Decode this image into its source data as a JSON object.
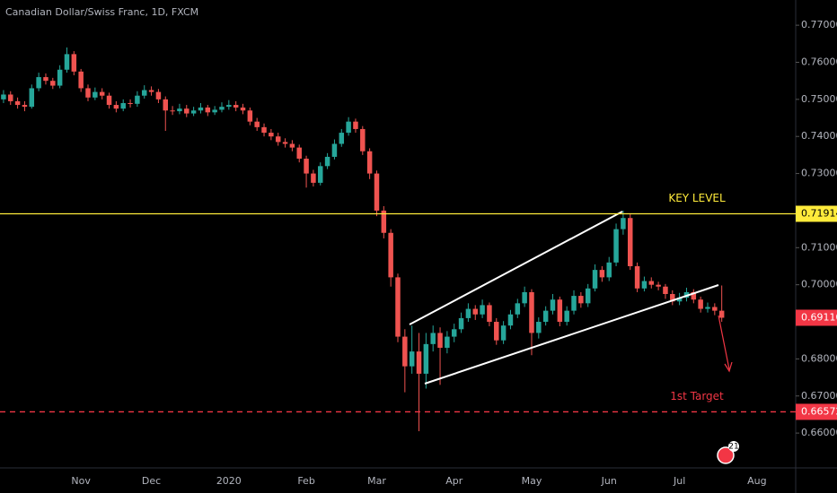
{
  "chart_data": {
    "type": "candlestick",
    "title": "Canadian Dollar/Swiss Franc, 1D, FXCM",
    "up_color": "#26a69a",
    "down_color": "#ef5350",
    "grid": false,
    "categories": [
      null,
      null,
      null,
      null,
      null,
      null,
      null,
      null,
      null,
      null,
      null,
      "Nov",
      null,
      null,
      null,
      null,
      null,
      null,
      null,
      null,
      null,
      "Dec",
      null,
      null,
      null,
      null,
      null,
      null,
      null,
      null,
      null,
      null,
      "2020",
      null,
      null,
      null,
      null,
      null,
      null,
      null,
      null,
      null,
      null,
      "Feb",
      null,
      null,
      null,
      null,
      null,
      null,
      null,
      null,
      null,
      "Mar",
      null,
      null,
      null,
      null,
      null,
      null,
      null,
      null,
      null,
      null,
      "Apr",
      null,
      null,
      null,
      null,
      null,
      null,
      null,
      null,
      null,
      null,
      "May",
      null,
      null,
      null,
      null,
      null,
      null,
      null,
      null,
      null,
      null,
      "Jun",
      null,
      null,
      null,
      null,
      null,
      null,
      null,
      null,
      null,
      "Jul",
      null,
      null,
      null,
      null,
      null,
      null,
      null,
      null,
      null,
      null,
      "Aug",
      null,
      null,
      null,
      null,
      null
    ],
    "open": [
      0.75,
      0.7513,
      0.7495,
      0.7485,
      0.748,
      0.753,
      0.756,
      0.755,
      0.7537,
      0.758,
      0.7622,
      0.7575,
      0.753,
      0.7505,
      0.752,
      0.751,
      0.7485,
      0.7475,
      0.749,
      0.7488,
      0.751,
      0.7525,
      0.752,
      0.75,
      0.747,
      0.7468,
      0.7475,
      0.7462,
      0.747,
      0.7478,
      0.7465,
      0.7472,
      0.748,
      0.7485,
      0.7478,
      0.747,
      0.744,
      0.7425,
      0.741,
      0.74,
      0.7385,
      0.738,
      0.737,
      0.734,
      0.73,
      0.7275,
      0.732,
      0.7345,
      0.738,
      0.741,
      0.744,
      0.742,
      0.736,
      0.73,
      0.72,
      0.714,
      0.702,
      0.686,
      0.678,
      0.682,
      0.676,
      0.684,
      0.687,
      0.683,
      0.686,
      0.688,
      0.691,
      0.6935,
      0.692,
      0.6945,
      0.69,
      0.685,
      0.689,
      0.692,
      0.695,
      0.698,
      0.687,
      0.69,
      0.693,
      0.696,
      0.69,
      0.693,
      0.697,
      0.695,
      0.699,
      0.704,
      0.702,
      0.706,
      0.715,
      0.718,
      0.705,
      0.699,
      0.701,
      0.7,
      0.6995,
      0.6975,
      0.6955,
      0.6965,
      0.698,
      0.696,
      0.6935,
      0.694,
      0.693,
      null,
      null,
      null,
      null,
      null,
      null,
      null,
      null,
      null,
      null
    ],
    "high": [
      0.7525,
      0.7522,
      0.7505,
      0.7495,
      0.754,
      0.7572,
      0.757,
      0.7558,
      0.7592,
      0.764,
      0.763,
      0.7582,
      0.754,
      0.7532,
      0.753,
      0.7518,
      0.7495,
      0.75,
      0.75,
      0.7522,
      0.7538,
      0.7535,
      0.7528,
      0.7508,
      0.7482,
      0.7488,
      0.7485,
      0.748,
      0.749,
      0.7485,
      0.7482,
      0.7492,
      0.7498,
      0.7495,
      0.7488,
      0.7478,
      0.745,
      0.7435,
      0.742,
      0.741,
      0.7395,
      0.739,
      0.7378,
      0.7348,
      0.731,
      0.733,
      0.7355,
      0.7392,
      0.742,
      0.7452,
      0.7448,
      0.7428,
      0.7368,
      0.7308,
      0.7212,
      0.715,
      0.703,
      0.688,
      0.689,
      0.687,
      0.687,
      0.689,
      0.6885,
      0.6875,
      0.6895,
      0.6925,
      0.695,
      0.6945,
      0.696,
      0.6952,
      0.691,
      0.6902,
      0.6932,
      0.6962,
      0.6995,
      0.6988,
      0.6912,
      0.6942,
      0.6975,
      0.6968,
      0.6942,
      0.6985,
      0.698,
      0.7002,
      0.7055,
      0.705,
      0.7075,
      0.7165,
      0.72,
      0.719,
      0.706,
      0.7022,
      0.702,
      0.7008,
      0.7002,
      0.6985,
      0.6978,
      0.6992,
      0.6988,
      0.6968,
      0.6952,
      0.695,
      0.6998,
      null,
      null,
      null,
      null,
      null,
      null,
      null,
      null,
      null,
      null
    ],
    "low": [
      0.749,
      0.7485,
      0.7475,
      0.7468,
      0.7475,
      0.7522,
      0.754,
      0.7528,
      0.753,
      0.7572,
      0.7565,
      0.752,
      0.7495,
      0.7498,
      0.75,
      0.7475,
      0.7465,
      0.7468,
      0.7478,
      0.748,
      0.7502,
      0.751,
      0.749,
      0.7415,
      0.7458,
      0.746,
      0.7452,
      0.7455,
      0.7462,
      0.7455,
      0.7458,
      0.7465,
      0.7472,
      0.7468,
      0.746,
      0.743,
      0.7415,
      0.74,
      0.739,
      0.7375,
      0.737,
      0.736,
      0.733,
      0.7262,
      0.7265,
      0.7268,
      0.7312,
      0.7338,
      0.7372,
      0.7402,
      0.741,
      0.735,
      0.7285,
      0.7185,
      0.7125,
      0.6995,
      0.6845,
      0.671,
      0.676,
      0.6605,
      0.672,
      0.682,
      0.673,
      0.6815,
      0.6845,
      0.687,
      0.69,
      0.6905,
      0.691,
      0.6888,
      0.6838,
      0.684,
      0.688,
      0.691,
      0.694,
      0.681,
      0.6855,
      0.689,
      0.692,
      0.6888,
      0.689,
      0.692,
      0.6938,
      0.694,
      0.6982,
      0.7008,
      0.701,
      0.705,
      0.7135,
      0.704,
      0.698,
      0.6982,
      0.699,
      0.6985,
      0.6962,
      0.6945,
      0.6945,
      0.6955,
      0.695,
      0.6925,
      0.6925,
      0.6918,
      0.69,
      null,
      null,
      null,
      null,
      null,
      null,
      null,
      null,
      null,
      null
    ],
    "close": [
      0.7513,
      0.7495,
      0.7485,
      0.748,
      0.753,
      0.756,
      0.755,
      0.7537,
      0.758,
      0.7622,
      0.7575,
      0.753,
      0.7505,
      0.752,
      0.751,
      0.7485,
      0.7475,
      0.749,
      0.7488,
      0.751,
      0.7525,
      0.752,
      0.75,
      0.747,
      0.7468,
      0.7475,
      0.7462,
      0.747,
      0.7478,
      0.7465,
      0.7472,
      0.748,
      0.7485,
      0.7478,
      0.747,
      0.744,
      0.7425,
      0.741,
      0.74,
      0.7385,
      0.738,
      0.737,
      0.734,
      0.73,
      0.7275,
      0.732,
      0.7345,
      0.738,
      0.741,
      0.744,
      0.742,
      0.736,
      0.73,
      0.72,
      0.714,
      0.702,
      0.686,
      0.678,
      0.682,
      0.676,
      0.684,
      0.687,
      0.683,
      0.686,
      0.688,
      0.691,
      0.6935,
      0.692,
      0.6945,
      0.69,
      0.685,
      0.689,
      0.692,
      0.695,
      0.698,
      0.687,
      0.69,
      0.693,
      0.696,
      0.69,
      0.693,
      0.697,
      0.695,
      0.699,
      0.704,
      0.702,
      0.706,
      0.715,
      0.718,
      0.705,
      0.699,
      0.701,
      0.7,
      0.6995,
      0.6975,
      0.6955,
      0.6965,
      0.698,
      0.696,
      0.6935,
      0.694,
      0.693,
      0.6911,
      null,
      null,
      null,
      null,
      null,
      null,
      null,
      null,
      null,
      null
    ],
    "ylim": [
      0.6506,
      0.7768
    ],
    "yticks": [
      {
        "value": 0.77,
        "label": "0.77000"
      },
      {
        "value": 0.76,
        "label": "0.76000"
      },
      {
        "value": 0.75,
        "label": "0.75000"
      },
      {
        "value": 0.74,
        "label": "0.74000"
      },
      {
        "value": 0.73,
        "label": "0.73000"
      },
      {
        "value": 0.71,
        "label": "0.71000"
      },
      {
        "value": 0.7,
        "label": "0.70000"
      },
      {
        "value": 0.68,
        "label": "0.68000"
      },
      {
        "value": 0.67,
        "label": "0.67000"
      },
      {
        "value": 0.66,
        "label": "0.66000"
      }
    ],
    "price_lines": [
      {
        "name": "KEY LEVEL",
        "value": 0.71914,
        "color": "#ffeb3b",
        "style": "solid"
      },
      {
        "name": "1st Target",
        "value": 0.66572,
        "color": "#f23645",
        "style": "dashed"
      }
    ],
    "last_price": {
      "value": 0.6911,
      "label": "0.69110",
      "color": "#f23645"
    },
    "badge": "21"
  }
}
